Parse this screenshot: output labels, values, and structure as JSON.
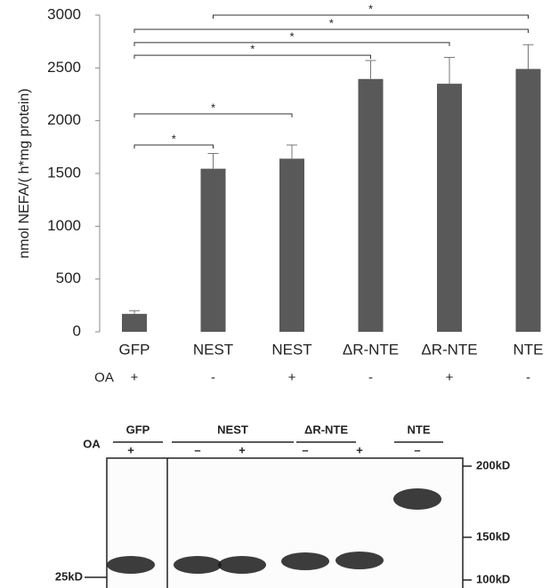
{
  "chart_data": {
    "type": "bar",
    "y_label": "nmol NEFA/( h*mg protein)",
    "categories": [
      "GFP",
      "NEST",
      "NEST",
      "ΔR-NTE",
      "ΔR-NTE",
      "NTE"
    ],
    "values": [
      170,
      1545,
      1640,
      2395,
      2350,
      2490
    ],
    "errors": [
      30,
      145,
      130,
      175,
      250,
      230
    ],
    "color": "#595959",
    "ylim": [
      0,
      3000
    ],
    "yticks": [
      0,
      500,
      1000,
      1500,
      2000,
      2500,
      3000
    ],
    "row_label": "OA",
    "row": [
      "+",
      "-",
      "+",
      "-",
      "+",
      "-"
    ],
    "significance": [
      {
        "from": 0,
        "to": 1,
        "y": 1770,
        "label": "*"
      },
      {
        "from": 0,
        "to": 2,
        "y": 2065,
        "label": "*"
      },
      {
        "from": 0,
        "to": 3,
        "y": 2620,
        "label": "*"
      },
      {
        "from": 0,
        "to": 4,
        "y": 2740,
        "label": "*"
      },
      {
        "from": 0,
        "to": 5,
        "y": 2865,
        "label": "*"
      },
      {
        "from": 1,
        "to": 5,
        "y": 3000,
        "label": "*"
      }
    ]
  },
  "blot": {
    "groups": [
      "GFP",
      "NEST",
      "ΔR-NTE",
      "NTE"
    ],
    "row_label": "OA",
    "lanes": [
      "+",
      "–",
      "+",
      "–",
      "+",
      "–"
    ],
    "markers": [
      "200kD",
      "150kD",
      "100kD"
    ],
    "left_marker": "25kD"
  }
}
